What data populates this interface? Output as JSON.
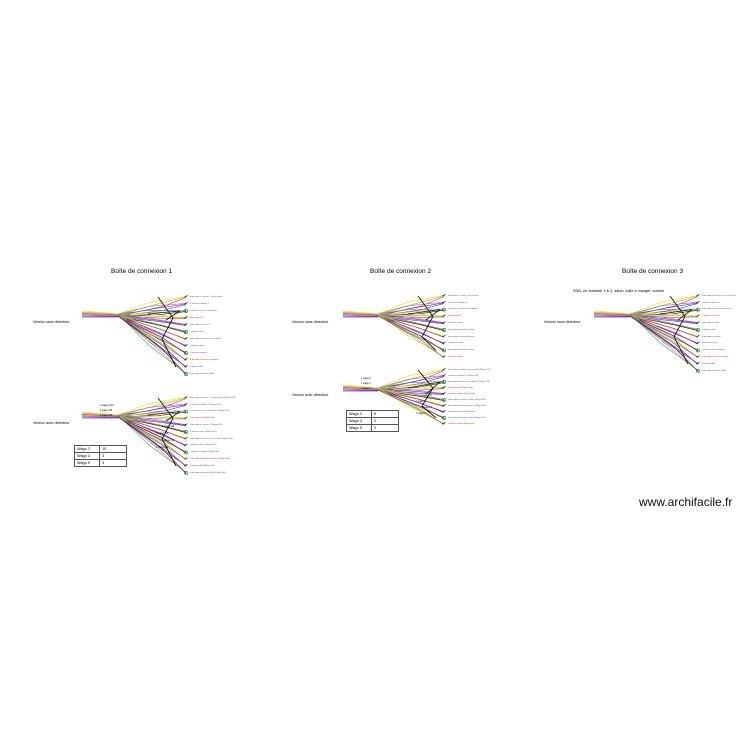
{
  "boxes": [
    {
      "title": "Boîte de connexion 1",
      "subtitle": "",
      "without_detector": {
        "label": "Version sans détecteur",
        "circuits": [
          "Interrupteur cuisine 1 (va-et-vient)",
          "Lumière chambre 1",
          "Lumière cuisine / chambre 2",
          "Interrupteur 2",
          "Interrupteur cuisine 2",
          "Lumière séjour",
          "Interrupteur cuisine (va-et-vient)",
          "Lumière entrée",
          "Lumière chambre",
          "Interrupteur lumière chambre",
          "Lumière SdB",
          "Interrupteur lumière SdB"
        ]
      },
      "with_detector": {
        "label": "Version avec détecteur",
        "circuits": [
          "Interrupteur cuisine 1 (va-et-vient) (Wago 2x10)",
          "Lumière chambre 1 (Wago 3x5)",
          "Lumière cuisine / chambre 2 (Wago 3x5)",
          "Interrupteur 2 (Wago 2x5)",
          "Interrupteur cuisine 2 (Wago 3x5)",
          "Lumière séjour (Wago 3x5)",
          "Interrupteur cuisine (va-et-vient) (Wago 3x5)",
          "Lumière entrée (Wago 3x5)",
          "Lumière chambre (Wago 3x5)",
          "Interrupteur lumière chambre (Wago 3x5)",
          "Lumière SdB (Wago 3x5)",
          "Interrupteur lumière SdB (Wago 3x5)"
        ],
        "wago_tags": [
          "1 wago 2x10",
          "1 wago 3x5",
          "1 wago 3x5",
          "1 wago 3x5",
          "1 wago 3x5",
          "1 wago 3x5",
          "1 wago 3x5"
        ],
        "table": [
          [
            "Wago 2",
            "15"
          ],
          [
            "Wago 3",
            "3"
          ],
          [
            "Wago 5",
            "3"
          ]
        ]
      }
    },
    {
      "title": "Boîte de connexion 2",
      "subtitle": "",
      "without_detector": {
        "label": "Version sans détecteur",
        "circuits": [
          "Interrupteur couloir (va-et-vient)",
          "Lumière chambre 3",
          "Interrupteur lumière chambre 3",
          "Interrupteur 4",
          "Lumière couloir",
          "Interrupteur lumière couloir",
          "Interrupteur lumière bureau",
          "Lumière bureau",
          "Interrupteur lumière entrée",
          "Lumière entrée"
        ]
      },
      "with_detector": {
        "label": "Version avec détecteur",
        "circuits": [
          "Interrupteur couloir (va-et-vient) (Wago 2x5)",
          "Lumière chambre 3 (Wago 3x5)",
          "Interrupteur lumière chambre 3 (Wago 3x5)",
          "Interrupteur 4 (Wago 3x5)",
          "Lumière couloir (Wago 3x5)",
          "Interrupteur lumière couloir (Wago 3x5)",
          "Interrupteur lumière bureau (Wago 3x5)",
          "Lumière bureau (Wago 3x5)",
          "Interrupteur lumière entrée (Wago 3x5)",
          "Lumière entrée (Wago 3x5)"
        ],
        "wago_tags": [
          "1 wago 2",
          "1 wago 3",
          "1 wago 3",
          "1 wago 5",
          "1 wago 3",
          "1 wago 3",
          "1 wago 5"
        ],
        "table": [
          [
            "Wago 2",
            "6"
          ],
          [
            "Wago 3",
            "2"
          ],
          [
            "Wago 5",
            "2"
          ]
        ]
      }
    },
    {
      "title": "Boîte de connexion 3",
      "subtitle": "SDB, wc terrasse 1 & 2, salon, salle à manger, cuisine",
      "without_detector": {
        "label": "Version sans détecteur",
        "circuits": [
          "Interrupteur terrasse 1 (va-et-vient)",
          "Lumière terrasse 1",
          "Interrupteur lumière terrasse 2",
          "Lumière terrasse 2",
          "Interrupteur salon",
          "Lumière salon",
          "Interrupteur cuisine",
          "Lumière cuisine",
          "Lumière salle à manger",
          "Interrupteur salle à manger",
          "Lumière SdB",
          "Interrupteur lumière SdB"
        ]
      }
    }
  ],
  "watermark": "www.archifacile.fr",
  "colors": {
    "wire_yellow": "#e7e000",
    "wire_green": "#63c93a",
    "wire_red": "#e2263b",
    "wire_blue": "#2d3fd6",
    "wire_purple": "#7b2bb8",
    "wire_black": "#111111",
    "wire_pink": "#e9508c",
    "wire_cyan": "#1aa2c4",
    "wire_orange": "#f08a1c",
    "ground_green": "#1e8a2a",
    "label_red": "#d61a1a"
  }
}
